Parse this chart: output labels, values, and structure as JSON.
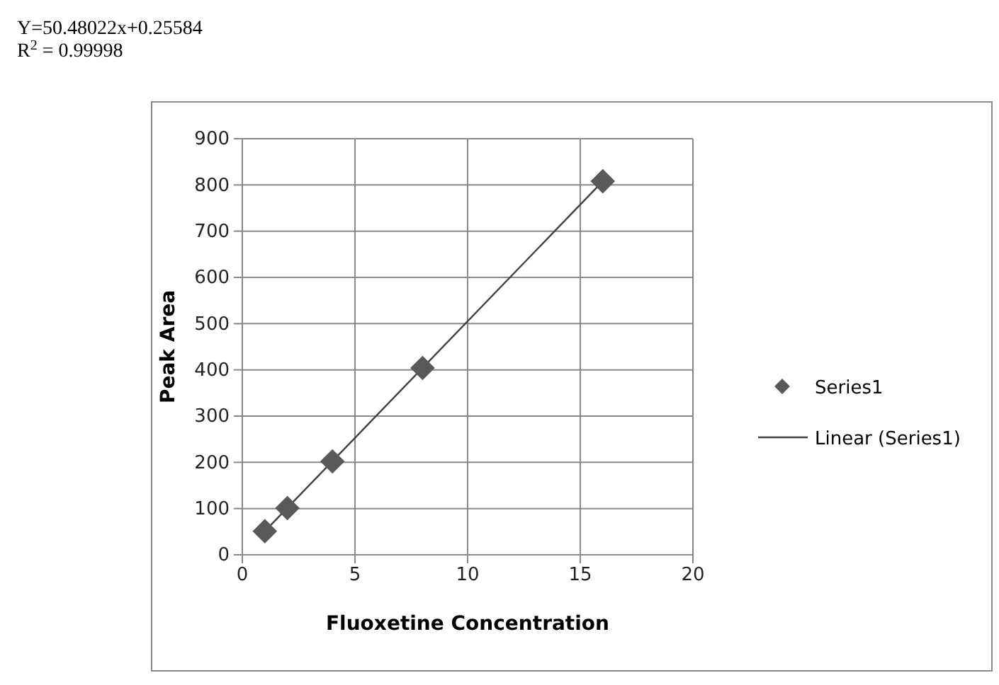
{
  "chart_data": {
    "type": "scatter",
    "xlabel": "Fluoxetine Concentration",
    "ylabel": "Peak Area",
    "annotations": [
      "Y=50.48022x+0.25584",
      "R$^{2}$ = 0.99998"
    ],
    "xlim": [
      0,
      20
    ],
    "xticks": [
      0,
      5,
      10,
      15,
      20
    ],
    "ylim": [
      0,
      900
    ],
    "yticks": [
      0,
      100,
      200,
      300,
      400,
      500,
      600,
      700,
      800,
      900
    ],
    "grid": true,
    "legend": "right",
    "series": [
      {
        "name": "Series1",
        "type": "scatter",
        "color": "#595959",
        "marker": "diamond",
        "x": [
          1,
          2,
          4,
          8,
          16
        ],
        "values": [
          51,
          101,
          202,
          404,
          808
        ]
      },
      {
        "name": "Linear (Series1)",
        "type": "line",
        "color": "#404040",
        "x": [
          1,
          16
        ],
        "values": [
          51,
          808
        ],
        "line_style": "solid"
      }
    ]
  }
}
